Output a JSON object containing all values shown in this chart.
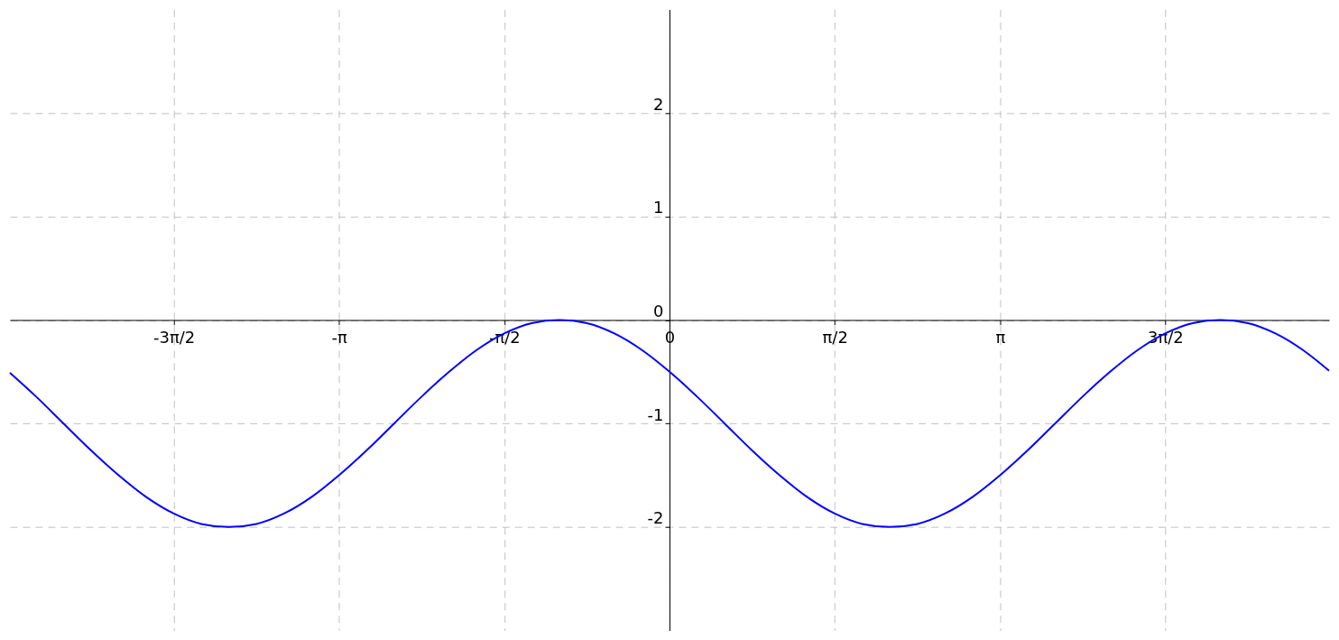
{
  "chart_data": {
    "type": "line",
    "x": [
      -6.27,
      -6.021,
      -5.76,
      -5.498,
      -5.236,
      -4.974,
      -4.712,
      -4.451,
      -4.189,
      -3.927,
      -3.665,
      -3.403,
      -3.142,
      -2.88,
      -2.618,
      -2.356,
      -2.094,
      -1.833,
      -1.571,
      -1.309,
      -1.047,
      -0.785,
      -0.524,
      -0.262,
      0,
      0.262,
      0.524,
      0.785,
      1.047,
      1.309,
      1.571,
      1.833,
      2.094,
      2.356,
      2.618,
      2.88,
      3.142,
      3.403,
      3.665,
      3.927,
      4.189,
      4.451,
      4.712,
      4.974,
      5.236,
      5.498,
      5.76,
      6.021,
      6.27
    ],
    "series": [
      {
        "color": "#0000ff",
        "values": [
          -0.51,
          -0.74,
          -1,
          -1.26,
          -1.5,
          -1.71,
          -1.87,
          -1.97,
          -2,
          -1.97,
          -1.87,
          -1.71,
          -1.5,
          -1.26,
          -1,
          -0.74,
          -0.5,
          -0.29,
          -0.13,
          -0.03,
          0,
          -0.03,
          -0.13,
          -0.29,
          -0.5,
          -0.74,
          -1,
          -1.26,
          -1.5,
          -1.71,
          -1.87,
          -1.97,
          -2,
          -1.97,
          -1.87,
          -1.71,
          -1.5,
          -1.26,
          -1,
          -0.74,
          -0.5,
          -0.29,
          -0.13,
          -0.03,
          0,
          -0.03,
          -0.13,
          -0.29,
          -0.49
        ]
      }
    ],
    "xlim": [
      -6.27,
      6.27
    ],
    "ylim": [
      -3,
      3
    ],
    "xticks": [
      {
        "value": -4.712,
        "label": "-3π/2"
      },
      {
        "value": -3.142,
        "label": "-π"
      },
      {
        "value": -1.571,
        "label": "-π/2"
      },
      0,
      {
        "value": 1.571,
        "label": "π/2"
      },
      {
        "value": 3.142,
        "label": "π"
      },
      {
        "value": 4.712,
        "label": "3π/2"
      }
    ],
    "yticks": [
      -2,
      -1,
      0,
      1,
      2
    ],
    "grid": true,
    "line_style": "solid",
    "marker": "none"
  }
}
